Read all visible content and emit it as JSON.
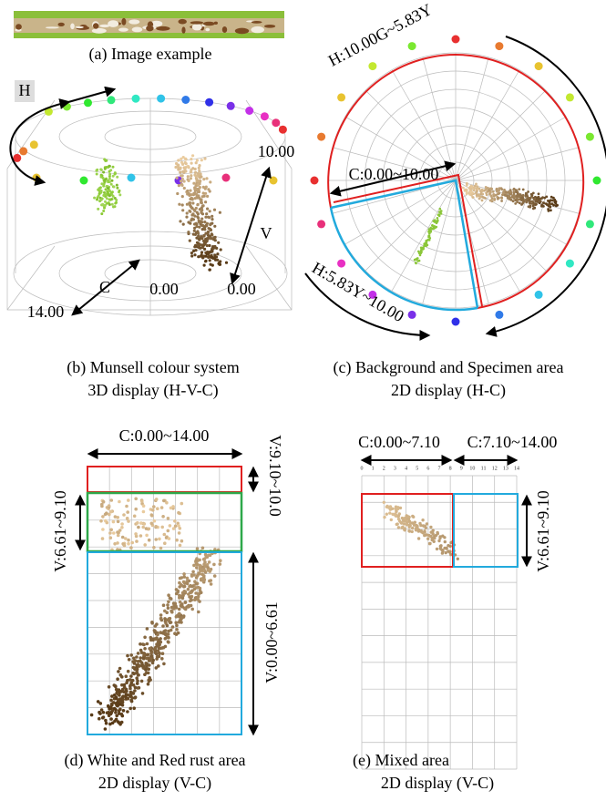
{
  "panel_a": {
    "caption": "(a) Image example"
  },
  "panel_b": {
    "h": "H",
    "v_max": "10.00",
    "v": "V",
    "c": "C",
    "c_min": "0.00",
    "v_min": "0.00",
    "c_max": "14.00",
    "caption": [
      "(b) Munsell colour system",
      "3D display (H-V-C)"
    ]
  },
  "panel_c": {
    "hue_top": "H:10.00G~5.83Y",
    "chroma": "C:0.00~10.00",
    "hue_bottom": "H:5.83Y~10.00",
    "caption": [
      "(c) Background and Specimen area",
      "2D display (H-C)"
    ]
  },
  "panel_d": {
    "chroma": "C:0.00~14.00",
    "v_top": "V:9.10~10.0",
    "v_mid": "V:6.61~9.10",
    "v_low": "V:0.00~6.61",
    "caption": [
      "(d) White and Red rust area",
      "2D display (V-C)"
    ]
  },
  "panel_e": {
    "chroma_left": "C:0.00~7.10",
    "chroma_right": "C:7.10~14.00",
    "v_range": "V:6.61~9.10",
    "scale": [
      "0",
      "1",
      "2",
      "3",
      "4",
      "5",
      "6",
      "7",
      "8",
      "9",
      "10",
      "11",
      "12",
      "13",
      "14"
    ],
    "caption": [
      "(e) Mixed area",
      "2D display (V-C)"
    ]
  }
}
